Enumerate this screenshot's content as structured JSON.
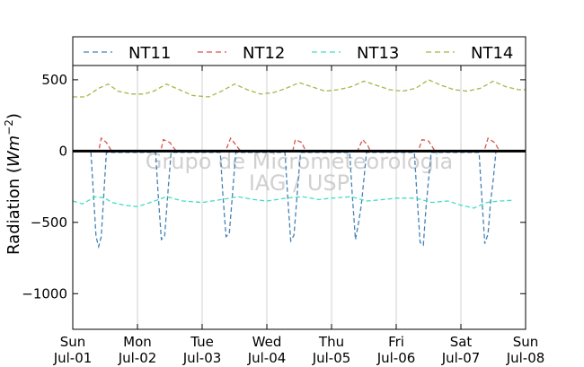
{
  "chart_data": {
    "type": "line",
    "ylabel": "Radiation (Wm⁻²)",
    "ylabel_text": "Radiation (",
    "ylabel_unit": "Wm",
    "ylabel_exp": "−2",
    "ylabel_close": ")",
    "ylim": [
      -1250,
      600
    ],
    "yticks": [
      500,
      0,
      -500,
      -1000
    ],
    "ytick_labels": [
      "500",
      "0",
      "−500",
      "−1000"
    ],
    "xlim": [
      0,
      7
    ],
    "xticks": [
      {
        "day": 0,
        "line1": "Sun",
        "line2": "Jul-01"
      },
      {
        "day": 1,
        "line1": "Mon",
        "line2": "Jul-02"
      },
      {
        "day": 2,
        "line1": "Tue",
        "line2": "Jul-03"
      },
      {
        "day": 3,
        "line1": "Wed",
        "line2": "Jul-04"
      },
      {
        "day": 4,
        "line1": "Thu",
        "line2": "Jul-05"
      },
      {
        "day": 5,
        "line1": "Fri",
        "line2": "Jul-06"
      },
      {
        "day": 6,
        "line1": "Sat",
        "line2": "Jul-07"
      },
      {
        "day": 7,
        "line1": "Sun",
        "line2": "Jul-08"
      }
    ],
    "grid": "vertical",
    "zero_line": true,
    "legend_position": "top",
    "watermark": [
      "Grupo de Micrometeorologia",
      "IAG / USP"
    ],
    "series": [
      {
        "name": "NT11",
        "color": "#4682b4",
        "values": [
          [
            0.28,
            -10
          ],
          [
            0.32,
            -300
          ],
          [
            0.36,
            -600
          ],
          [
            0.4,
            -670
          ],
          [
            0.44,
            -600
          ],
          [
            0.48,
            -300
          ],
          [
            0.52,
            -10
          ],
          [
            1.28,
            -10
          ],
          [
            1.32,
            -300
          ],
          [
            1.37,
            -620
          ],
          [
            1.42,
            -600
          ],
          [
            1.47,
            -300
          ],
          [
            1.52,
            -10
          ],
          [
            2.28,
            -10
          ],
          [
            2.32,
            -300
          ],
          [
            2.37,
            -600
          ],
          [
            2.42,
            -580
          ],
          [
            2.47,
            -300
          ],
          [
            2.52,
            -10
          ],
          [
            3.28,
            -10
          ],
          [
            3.32,
            -300
          ],
          [
            3.37,
            -630
          ],
          [
            3.42,
            -590
          ],
          [
            3.47,
            -300
          ],
          [
            3.52,
            -10
          ],
          [
            4.28,
            -10
          ],
          [
            4.32,
            -300
          ],
          [
            4.37,
            -620
          ],
          [
            4.42,
            -500
          ],
          [
            4.46,
            -380
          ],
          [
            4.5,
            -200
          ],
          [
            4.54,
            -10
          ],
          [
            5.28,
            -10
          ],
          [
            5.32,
            -300
          ],
          [
            5.37,
            -640
          ],
          [
            5.42,
            -660
          ],
          [
            5.46,
            -400
          ],
          [
            5.5,
            -200
          ],
          [
            5.54,
            -10
          ],
          [
            6.28,
            -10
          ],
          [
            6.32,
            -300
          ],
          [
            6.37,
            -650
          ],
          [
            6.42,
            -580
          ],
          [
            6.46,
            -350
          ],
          [
            6.5,
            -200
          ],
          [
            6.54,
            -10
          ]
        ]
      },
      {
        "name": "NT12",
        "color": "#d9534f",
        "values": [
          [
            0.0,
            0
          ],
          [
            0.4,
            0
          ],
          [
            0.44,
            90
          ],
          [
            0.52,
            60
          ],
          [
            0.6,
            0
          ],
          [
            1.0,
            0
          ],
          [
            1.36,
            0
          ],
          [
            1.4,
            80
          ],
          [
            1.5,
            60
          ],
          [
            1.6,
            0
          ],
          [
            2.0,
            0
          ],
          [
            2.36,
            0
          ],
          [
            2.44,
            90
          ],
          [
            2.56,
            20
          ],
          [
            2.6,
            0
          ],
          [
            3.0,
            0
          ],
          [
            3.4,
            0
          ],
          [
            3.44,
            80
          ],
          [
            3.54,
            60
          ],
          [
            3.6,
            0
          ],
          [
            4.0,
            0
          ],
          [
            4.4,
            0
          ],
          [
            4.48,
            80
          ],
          [
            4.56,
            40
          ],
          [
            4.6,
            0
          ],
          [
            5.0,
            0
          ],
          [
            5.34,
            0
          ],
          [
            5.4,
            80
          ],
          [
            5.5,
            70
          ],
          [
            5.6,
            0
          ],
          [
            6.0,
            0
          ],
          [
            6.36,
            0
          ],
          [
            6.42,
            90
          ],
          [
            6.52,
            60
          ],
          [
            6.6,
            0
          ],
          [
            6.8,
            0
          ]
        ]
      },
      {
        "name": "NT13",
        "color": "#40e0c0",
        "values": [
          [
            0.0,
            -350
          ],
          [
            0.15,
            -370
          ],
          [
            0.35,
            -320
          ],
          [
            0.5,
            -330
          ],
          [
            0.6,
            -360
          ],
          [
            0.8,
            -380
          ],
          [
            1.0,
            -390
          ],
          [
            1.2,
            -360
          ],
          [
            1.45,
            -320
          ],
          [
            1.7,
            -350
          ],
          [
            2.0,
            -360
          ],
          [
            2.3,
            -340
          ],
          [
            2.55,
            -320
          ],
          [
            2.8,
            -340
          ],
          [
            3.0,
            -350
          ],
          [
            3.3,
            -330
          ],
          [
            3.55,
            -320
          ],
          [
            3.8,
            -340
          ],
          [
            4.0,
            -330
          ],
          [
            4.3,
            -320
          ],
          [
            4.55,
            -350
          ],
          [
            4.8,
            -340
          ],
          [
            5.0,
            -330
          ],
          [
            5.3,
            -330
          ],
          [
            5.55,
            -360
          ],
          [
            5.8,
            -350
          ],
          [
            6.0,
            -380
          ],
          [
            6.2,
            -400
          ],
          [
            6.4,
            -360
          ],
          [
            6.6,
            -350
          ],
          [
            6.8,
            -345
          ]
        ]
      },
      {
        "name": "NT14",
        "color": "#a8b54a",
        "values": [
          [
            0.0,
            380
          ],
          [
            0.2,
            380
          ],
          [
            0.4,
            440
          ],
          [
            0.55,
            470
          ],
          [
            0.7,
            420
          ],
          [
            0.9,
            400
          ],
          [
            1.1,
            400
          ],
          [
            1.25,
            420
          ],
          [
            1.45,
            470
          ],
          [
            1.65,
            430
          ],
          [
            1.85,
            390
          ],
          [
            2.1,
            380
          ],
          [
            2.3,
            420
          ],
          [
            2.5,
            470
          ],
          [
            2.7,
            430
          ],
          [
            2.9,
            400
          ],
          [
            3.1,
            410
          ],
          [
            3.3,
            440
          ],
          [
            3.5,
            480
          ],
          [
            3.7,
            450
          ],
          [
            3.9,
            420
          ],
          [
            4.1,
            430
          ],
          [
            4.3,
            450
          ],
          [
            4.5,
            490
          ],
          [
            4.7,
            460
          ],
          [
            4.9,
            430
          ],
          [
            5.1,
            420
          ],
          [
            5.3,
            440
          ],
          [
            5.5,
            500
          ],
          [
            5.7,
            460
          ],
          [
            5.9,
            430
          ],
          [
            6.1,
            420
          ],
          [
            6.3,
            440
          ],
          [
            6.5,
            490
          ],
          [
            6.7,
            450
          ],
          [
            6.9,
            430
          ],
          [
            7.0,
            430
          ]
        ]
      }
    ]
  }
}
